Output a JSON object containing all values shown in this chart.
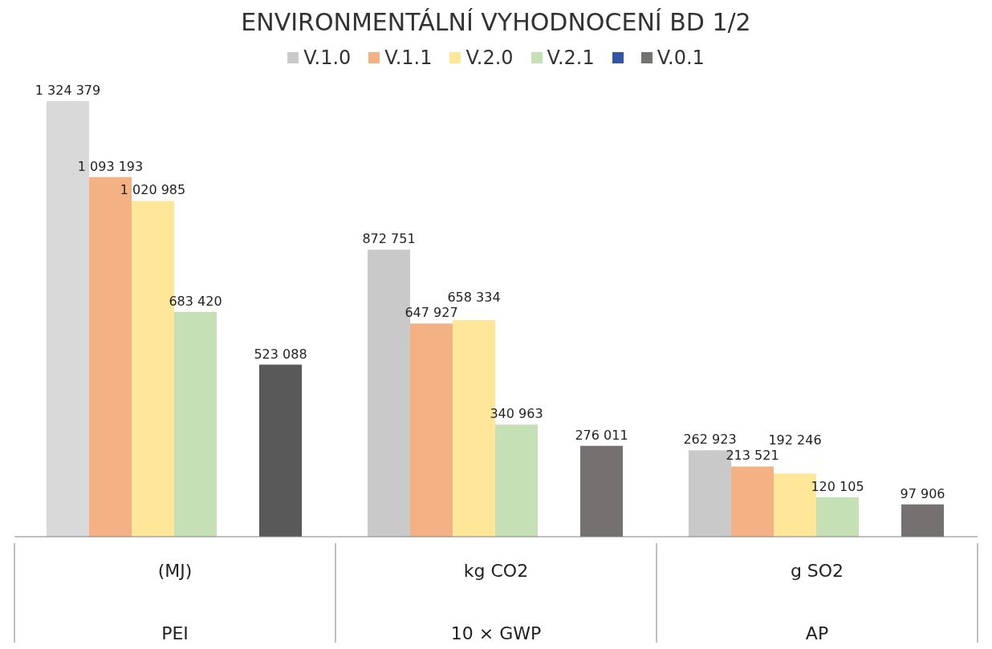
{
  "chart_data": {
    "type": "bar",
    "title": "ENVIRONMENTÁLNÍ VYHODNOCENÍ BD 1/2",
    "categories": [
      "PEI",
      "10 × GWP",
      "AP"
    ],
    "annotations": [
      "(MJ)",
      "kg CO2",
      "g SO2"
    ],
    "series": [
      {
        "name": "V.1.0",
        "color": "#c9c9c9",
        "colors": [
          "#d9d9d9",
          "#c9c9c9",
          "#c9c9c9"
        ],
        "values": [
          1324379,
          872751,
          262923
        ],
        "value_labels": [
          "1 324 379",
          "872 751",
          "262 923"
        ]
      },
      {
        "name": "V.1.1",
        "color": "#f4b183",
        "values": [
          1093193,
          647927,
          213521
        ],
        "value_labels": [
          "1 093 193",
          "647 927",
          "213 521"
        ]
      },
      {
        "name": "V.2.0",
        "color": "#ffe699",
        "values": [
          1020985,
          658334,
          192246
        ],
        "value_labels": [
          "1 020 985",
          "658 334",
          "192 246"
        ]
      },
      {
        "name": "V.2.1",
        "color": "#c5e0b4",
        "values": [
          683420,
          340963,
          120105
        ],
        "value_labels": [
          "683 420",
          "340 963",
          "120 105"
        ]
      },
      {
        "color": "#2f55a4",
        "values": [
          null,
          null,
          null
        ]
      },
      {
        "name": "V.0.1",
        "color": "#767171",
        "colors": [
          "#595959",
          "#767171",
          "#767171"
        ],
        "values": [
          523088,
          276011,
          97906
        ],
        "value_labels": [
          "523 088",
          "276 011",
          "97 906"
        ]
      }
    ],
    "legend": "top"
  }
}
